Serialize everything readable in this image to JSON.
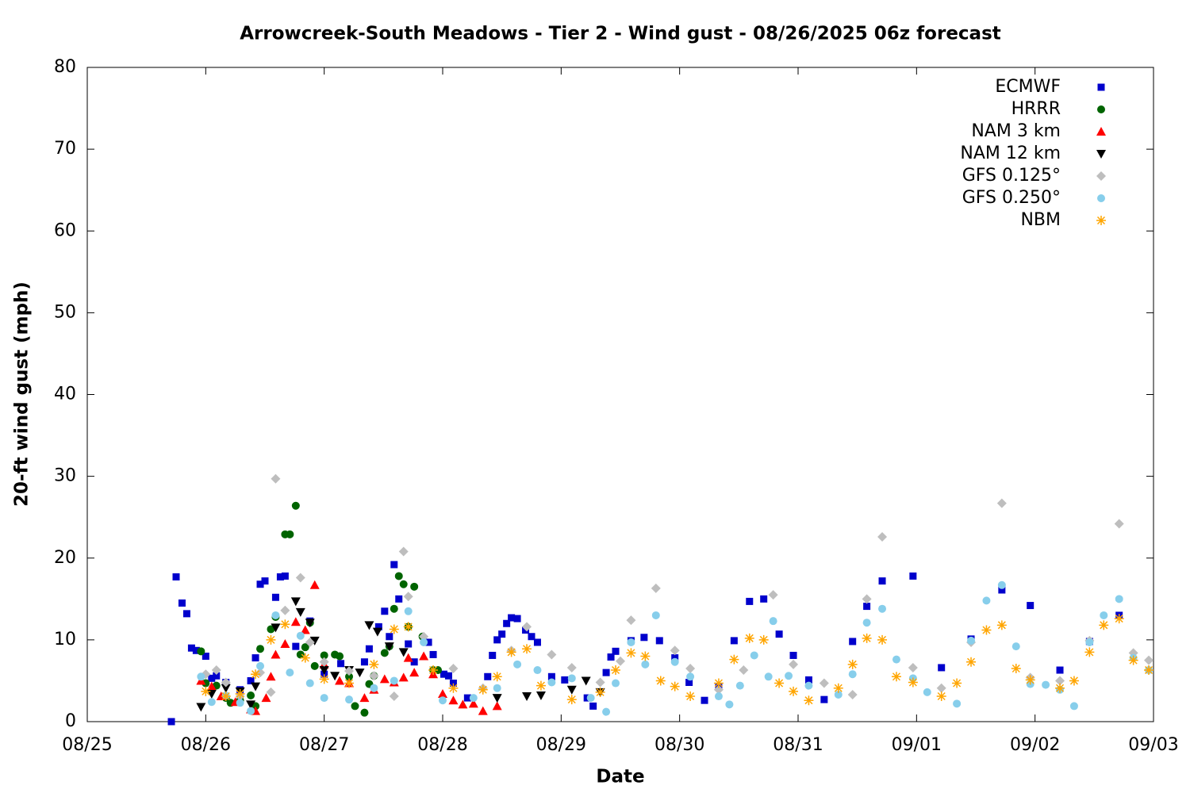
{
  "chart_data": {
    "type": "scatter",
    "title": "Arrowcreek-South Meadows - Tier 2 - Wind gust - 08/26/2025 06z forecast",
    "xlabel": "Date",
    "ylabel": "20-ft wind gust (mph)",
    "xlim": [
      0,
      9
    ],
    "xticks": [
      {
        "value": 0,
        "label": "08/25"
      },
      {
        "value": 1,
        "label": "08/26"
      },
      {
        "value": 2,
        "label": "08/27"
      },
      {
        "value": 3,
        "label": "08/28"
      },
      {
        "value": 4,
        "label": "08/29"
      },
      {
        "value": 5,
        "label": "08/30"
      },
      {
        "value": 6,
        "label": "08/31"
      },
      {
        "value": 7,
        "label": "09/01"
      },
      {
        "value": 8,
        "label": "09/02"
      },
      {
        "value": 9,
        "label": "09/03"
      }
    ],
    "ylim": [
      0,
      80
    ],
    "yticks": [
      0,
      10,
      20,
      30,
      40,
      50,
      60,
      70,
      80
    ],
    "legend": "top-right",
    "series": [
      {
        "name": "ECMWF",
        "color": "#0000cc",
        "marker": "square",
        "x": [
          0.71,
          0.75,
          0.8,
          0.84,
          0.88,
          0.92,
          1.0,
          1.05,
          1.09,
          1.17,
          1.29,
          1.38,
          1.42,
          1.46,
          1.5,
          1.59,
          1.63,
          1.67,
          1.76,
          1.88,
          2.0,
          2.14,
          2.34,
          2.38,
          2.46,
          2.51,
          2.55,
          2.59,
          2.63,
          2.71,
          2.76,
          2.88,
          2.92,
          3.01,
          3.05,
          3.09,
          3.21,
          3.38,
          3.42,
          3.46,
          3.5,
          3.54,
          3.58,
          3.63,
          3.7,
          3.75,
          3.8,
          3.92,
          4.03,
          4.22,
          4.27,
          4.38,
          4.42,
          4.46,
          4.59,
          4.7,
          4.83,
          4.96,
          5.08,
          5.21,
          5.33,
          5.46,
          5.59,
          5.71,
          5.84,
          5.96,
          6.09,
          6.22,
          6.46,
          6.58,
          6.71,
          6.97,
          7.21,
          7.46,
          7.72,
          7.96,
          8.21,
          8.46,
          8.71
        ],
        "values": [
          0,
          17.7,
          14.5,
          13.2,
          9.0,
          8.7,
          8.0,
          5.3,
          5.6,
          4.8,
          3.9,
          5.0,
          7.8,
          16.8,
          17.2,
          15.2,
          17.7,
          17.8,
          9.2,
          12.3,
          5.8,
          7.1,
          7.3,
          8.9,
          11.6,
          13.5,
          10.4,
          19.2,
          15.0,
          9.5,
          7.3,
          9.7,
          8.2,
          5.8,
          5.6,
          4.7,
          2.9,
          5.5,
          8.1,
          10.0,
          10.7,
          12.0,
          12.7,
          12.6,
          11.2,
          10.4,
          9.7,
          5.5,
          5.1,
          2.9,
          1.9,
          6.0,
          7.9,
          8.6,
          9.9,
          10.3,
          9.9,
          7.8,
          4.8,
          2.6,
          4.2,
          9.9,
          14.7,
          15.0,
          10.7,
          8.1,
          5.1,
          2.7,
          9.8,
          14.1,
          17.2,
          17.8,
          6.6,
          10.1,
          16.1,
          14.2,
          6.3,
          9.8,
          13.0
        ]
      },
      {
        "name": "HRRR",
        "color": "#006400",
        "marker": "circle",
        "x": [
          0.96,
          1.0,
          1.09,
          1.17,
          1.21,
          1.29,
          1.38,
          1.42,
          1.46,
          1.55,
          1.59,
          1.67,
          1.71,
          1.76,
          1.8,
          1.84,
          1.88,
          1.92,
          2.0,
          2.09,
          2.13,
          2.21,
          2.26,
          2.34,
          2.38,
          2.42,
          2.51,
          2.55,
          2.59,
          2.63,
          2.67,
          2.71,
          2.76,
          2.83,
          2.92,
          2.96
        ],
        "values": [
          8.6,
          4.7,
          4.4,
          2.9,
          2.3,
          2.6,
          3.2,
          1.9,
          8.9,
          11.3,
          12.8,
          22.9,
          22.9,
          26.4,
          8.2,
          9.1,
          12.1,
          6.8,
          8.1,
          8.2,
          8.0,
          5.5,
          1.9,
          1.1,
          4.6,
          5.6,
          8.4,
          9.2,
          13.8,
          17.8,
          16.8,
          11.6,
          16.5,
          10.4,
          6.3,
          6.3
        ]
      },
      {
        "name": "NAM 3 km",
        "color": "#ff0000",
        "marker": "triangle-up",
        "x": [
          0.96,
          1.05,
          1.13,
          1.25,
          1.38,
          1.42,
          1.51,
          1.55,
          1.59,
          1.67,
          1.76,
          1.84,
          1.92,
          2.0,
          2.13,
          2.21,
          2.34,
          2.42,
          2.51,
          2.59,
          2.67,
          2.71,
          2.76,
          2.84,
          2.92,
          3.0,
          3.09,
          3.17,
          3.26,
          3.34,
          3.46
        ],
        "values": [
          5.0,
          4.3,
          3.1,
          2.4,
          1.5,
          1.3,
          2.9,
          5.5,
          8.2,
          9.5,
          12.2,
          11.2,
          16.7,
          7.0,
          5.0,
          4.7,
          2.9,
          3.9,
          5.2,
          4.8,
          5.4,
          7.8,
          6.0,
          8.0,
          5.8,
          3.4,
          2.6,
          2.1,
          2.2,
          1.3,
          1.9
        ]
      },
      {
        "name": "NAM 12 km",
        "color": "#000000",
        "marker": "triangle-down",
        "x": [
          0.96,
          1.05,
          1.17,
          1.29,
          1.38,
          1.42,
          1.59,
          1.76,
          1.8,
          1.88,
          1.92,
          2.0,
          2.09,
          2.21,
          2.3,
          2.38,
          2.45,
          2.55,
          2.67,
          3.46,
          3.71,
          3.83,
          4.09,
          4.21,
          4.33
        ],
        "values": [
          1.8,
          3.4,
          4.1,
          3.7,
          2.1,
          4.3,
          11.5,
          14.7,
          13.4,
          12.1,
          9.9,
          6.3,
          5.6,
          6.3,
          6.0,
          11.8,
          11.0,
          9.2,
          8.5,
          2.9,
          3.1,
          3.2,
          3.9,
          5.0,
          3.6
        ]
      },
      {
        "name": "GFS 0.125°",
        "color": "#bebebe",
        "marker": "diamond",
        "x": [
          1.0,
          1.09,
          1.17,
          1.29,
          1.46,
          1.55,
          1.59,
          1.67,
          1.8,
          1.88,
          2.0,
          2.21,
          2.42,
          2.59,
          2.67,
          2.71,
          2.84,
          3.09,
          3.34,
          3.58,
          3.71,
          3.92,
          4.09,
          4.33,
          4.5,
          4.59,
          4.8,
          4.96,
          5.09,
          5.33,
          5.54,
          5.79,
          5.96,
          6.22,
          6.46,
          6.58,
          6.71,
          6.97,
          7.21,
          7.46,
          7.72,
          7.96,
          8.21,
          8.46,
          8.71,
          8.83,
          8.96
        ],
        "values": [
          5.8,
          6.3,
          4.8,
          3.1,
          6.0,
          3.6,
          29.7,
          13.6,
          17.6,
          9.7,
          7.3,
          6.2,
          5.6,
          3.1,
          20.8,
          15.3,
          10.4,
          6.5,
          4.1,
          8.7,
          11.6,
          8.2,
          6.6,
          4.8,
          7.4,
          12.4,
          16.3,
          8.7,
          6.5,
          3.9,
          6.3,
          15.5,
          7.0,
          4.7,
          3.3,
          15.0,
          22.6,
          6.6,
          4.1,
          9.7,
          26.7,
          5.4,
          5.0,
          9.9,
          24.2,
          8.4,
          7.5
        ]
      },
      {
        "name": "GFS 0.250°",
        "color": "#87ceeb",
        "marker": "circle",
        "x": [
          0.96,
          1.05,
          1.17,
          1.29,
          1.38,
          1.46,
          1.59,
          1.71,
          1.8,
          1.88,
          2.0,
          2.21,
          2.42,
          2.59,
          2.71,
          2.84,
          3.0,
          3.26,
          3.46,
          3.63,
          3.8,
          3.92,
          4.09,
          4.25,
          4.38,
          4.46,
          4.59,
          4.71,
          4.8,
          4.96,
          5.09,
          5.33,
          5.42,
          5.51,
          5.63,
          5.75,
          5.79,
          5.92,
          6.09,
          6.34,
          6.46,
          6.58,
          6.71,
          6.83,
          6.97,
          7.09,
          7.34,
          7.46,
          7.59,
          7.72,
          7.84,
          7.96,
          8.09,
          8.21,
          8.33,
          8.46,
          8.58,
          8.71,
          8.83,
          8.96
        ],
        "values": [
          5.5,
          2.4,
          3.2,
          2.3,
          1.3,
          6.8,
          13.0,
          6.0,
          10.5,
          4.7,
          2.9,
          2.7,
          4.1,
          5.0,
          13.5,
          9.7,
          2.6,
          2.9,
          4.1,
          7.0,
          6.3,
          4.8,
          5.3,
          2.9,
          1.2,
          4.7,
          9.7,
          7.0,
          13.0,
          7.3,
          5.5,
          3.1,
          2.1,
          4.4,
          8.1,
          5.5,
          12.3,
          5.6,
          4.4,
          3.3,
          5.8,
          12.1,
          13.8,
          7.6,
          5.3,
          3.6,
          2.2,
          9.9,
          14.8,
          16.7,
          9.2,
          4.6,
          4.5,
          3.9,
          1.9,
          9.7,
          13.0,
          15.0,
          7.8,
          6.3
        ]
      },
      {
        "name": "NBM",
        "color": "#ffa500",
        "marker": "asterisk",
        "x": [
          1.0,
          1.17,
          1.29,
          1.42,
          1.55,
          1.67,
          1.84,
          2.0,
          2.21,
          2.42,
          2.59,
          2.71,
          2.92,
          3.09,
          3.34,
          3.46,
          3.58,
          3.71,
          3.83,
          4.09,
          4.33,
          4.46,
          4.59,
          4.71,
          4.84,
          4.96,
          5.09,
          5.33,
          5.46,
          5.59,
          5.71,
          5.84,
          5.96,
          6.09,
          6.34,
          6.46,
          6.58,
          6.71,
          6.83,
          6.97,
          7.21,
          7.34,
          7.46,
          7.59,
          7.72,
          7.84,
          7.96,
          8.21,
          8.33,
          8.46,
          8.58,
          8.71,
          8.83,
          8.96
        ],
        "values": [
          3.7,
          3.1,
          3.4,
          5.8,
          10.0,
          11.9,
          7.8,
          5.2,
          4.7,
          7.0,
          11.3,
          11.6,
          6.3,
          4.1,
          3.9,
          5.5,
          8.5,
          8.9,
          4.4,
          2.7,
          3.6,
          6.3,
          8.4,
          8.0,
          5.0,
          4.3,
          3.1,
          4.7,
          7.6,
          10.2,
          10.0,
          4.7,
          3.7,
          2.6,
          4.1,
          7.0,
          10.2,
          10.0,
          5.5,
          4.8,
          3.1,
          4.7,
          7.3,
          11.2,
          11.8,
          6.5,
          5.1,
          4.1,
          5.0,
          8.5,
          11.8,
          12.6,
          7.5,
          6.3
        ]
      }
    ]
  }
}
